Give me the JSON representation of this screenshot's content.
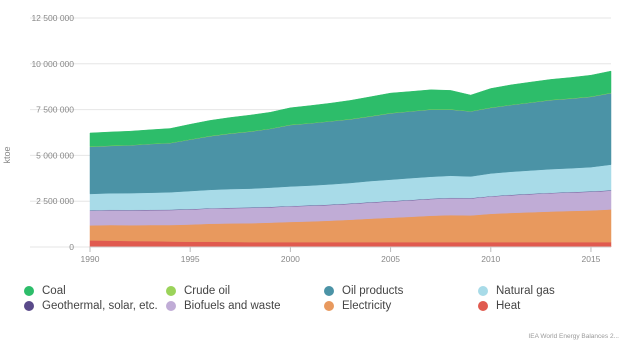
{
  "chart_data": {
    "type": "area",
    "stacked": true,
    "title": "",
    "xlabel": "",
    "ylabel": "ktoe",
    "xlim": [
      1990,
      2016
    ],
    "ylim": [
      0,
      12500000
    ],
    "x_ticks": [
      "1990",
      "1995",
      "2000",
      "2005",
      "2010",
      "2015"
    ],
    "y_ticks": [
      "0",
      "2 500 000",
      "5 000 000",
      "7 500 000",
      "10 000 000",
      "12 500 000"
    ],
    "grid": true,
    "legend_position": "bottom",
    "x": [
      1990,
      1991,
      1992,
      1993,
      1994,
      1995,
      1996,
      1997,
      1998,
      1999,
      2000,
      2001,
      2002,
      2003,
      2004,
      2005,
      2006,
      2007,
      2008,
      2009,
      2010,
      2011,
      2012,
      2013,
      2014,
      2015,
      2016
    ],
    "series": [
      {
        "name": "Heat",
        "color": "#e05a4f",
        "values": [
          360000,
          350000,
          330000,
          320000,
          300000,
          290000,
          290000,
          280000,
          270000,
          270000,
          270000,
          270000,
          270000,
          270000,
          270000,
          270000,
          270000,
          270000,
          270000,
          265000,
          270000,
          270000,
          270000,
          270000,
          270000,
          270000,
          270000
        ]
      },
      {
        "name": "Electricity",
        "color": "#e8995e",
        "values": [
          820000,
          850000,
          860000,
          880000,
          900000,
          940000,
          980000,
          1010000,
          1030000,
          1060000,
          1100000,
          1130000,
          1170000,
          1220000,
          1280000,
          1330000,
          1380000,
          1440000,
          1470000,
          1460000,
          1540000,
          1590000,
          1630000,
          1670000,
          1700000,
          1730000,
          1780000
        ]
      },
      {
        "name": "Biofuels and waste",
        "color": "#c0acd6",
        "values": [
          800000,
          805000,
          810000,
          815000,
          820000,
          825000,
          830000,
          835000,
          840000,
          845000,
          850000,
          855000,
          860000,
          870000,
          880000,
          890000,
          900000,
          910000,
          920000,
          930000,
          950000,
          970000,
          990000,
          1000000,
          1010000,
          1020000,
          1030000
        ]
      },
      {
        "name": "Geothermal, solar, etc.",
        "color": "#5a4a8a",
        "values": [
          20000,
          20000,
          20000,
          20000,
          20000,
          20000,
          20000,
          20000,
          20000,
          20000,
          20000,
          20000,
          20000,
          20000,
          20000,
          20000,
          20000,
          20000,
          20000,
          20000,
          20000,
          20000,
          20000,
          20000,
          20000,
          20000,
          20000
        ]
      },
      {
        "name": "Natural gas",
        "color": "#a8dbe8",
        "values": [
          900000,
          910000,
          920000,
          930000,
          950000,
          980000,
          1000000,
          1020000,
          1030000,
          1050000,
          1070000,
          1080000,
          1100000,
          1120000,
          1150000,
          1170000,
          1190000,
          1200000,
          1210000,
          1180000,
          1240000,
          1260000,
          1270000,
          1290000,
          1300000,
          1320000,
          1400000
        ]
      },
      {
        "name": "Oil products",
        "color": "#4b93a6",
        "values": [
          2570000,
          2585000,
          2610000,
          2655000,
          2680000,
          2805000,
          2930000,
          3025000,
          3110000,
          3205000,
          3350000,
          3395000,
          3440000,
          3470000,
          3530000,
          3620000,
          3640000,
          3660000,
          3610000,
          3545000,
          3580000,
          3640000,
          3700000,
          3770000,
          3800000,
          3840000,
          3900000
        ]
      },
      {
        "name": "Crude oil",
        "color": "#9bd35a",
        "values": [
          20000,
          20000,
          20000,
          20000,
          20000,
          20000,
          20000,
          20000,
          20000,
          20000,
          20000,
          20000,
          20000,
          20000,
          20000,
          20000,
          20000,
          20000,
          20000,
          20000,
          20000,
          20000,
          20000,
          20000,
          20000,
          20000,
          20000
        ]
      },
      {
        "name": "Coal",
        "color": "#2dbd6a",
        "values": [
          730000,
          740000,
          750000,
          760000,
          780000,
          820000,
          840000,
          860000,
          880000,
          880000,
          920000,
          950000,
          970000,
          1010000,
          1050000,
          1080000,
          1070000,
          1060000,
          1030000,
          870000,
          1030000,
          1080000,
          1100000,
          1110000,
          1130000,
          1160000,
          1180000
        ]
      }
    ],
    "legend_order": [
      "Coal",
      "Crude oil",
      "Oil products",
      "Natural gas",
      "Geothermal, solar, etc.",
      "Biofuels and waste",
      "Electricity",
      "Heat"
    ],
    "source": "IEA World Energy Balances 2..."
  }
}
